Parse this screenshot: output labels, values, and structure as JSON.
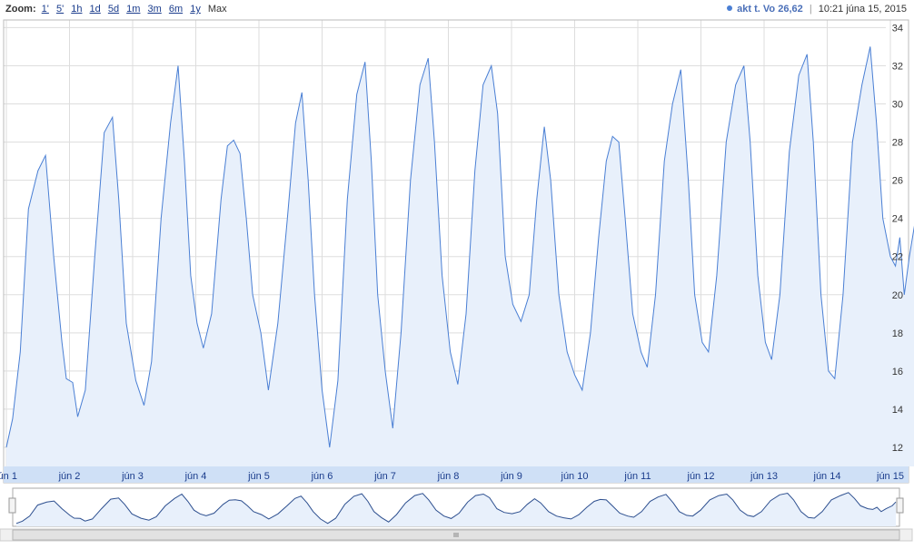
{
  "toolbar": {
    "zoom_label": "Zoom:",
    "zoom_options": [
      "1'",
      "5'",
      "1h",
      "1d",
      "5d",
      "1m",
      "3m",
      "6m",
      "1y",
      "Max"
    ],
    "active_zoom": "Max",
    "series_label": "akt t. Vo",
    "current_value": "26,62",
    "timestamp": "10:21 júna 15, 2015"
  },
  "colors": {
    "line": "#4a7fd4",
    "fill": "#e8f0fb",
    "grid": "#dddddd",
    "axis_band": "#cfe0f6"
  },
  "chart_data": {
    "type": "area",
    "title": "",
    "xlabel": "",
    "ylabel": "",
    "ylim": [
      11,
      34.4
    ],
    "xlim": [
      0,
      14.46
    ],
    "yticks": [
      "12",
      "14",
      "16",
      "18",
      "20",
      "22",
      "24",
      "26",
      "28",
      "30",
      "32",
      "34"
    ],
    "xticks": [
      {
        "x": 0,
        "label": "jún 1"
      },
      {
        "x": 1,
        "label": "jún 2"
      },
      {
        "x": 2,
        "label": "jún 3"
      },
      {
        "x": 3,
        "label": "jún 4"
      },
      {
        "x": 4,
        "label": "jún 5"
      },
      {
        "x": 5,
        "label": "jún 6"
      },
      {
        "x": 6,
        "label": "jún 7"
      },
      {
        "x": 7,
        "label": "jún 8"
      },
      {
        "x": 8,
        "label": "jún 9"
      },
      {
        "x": 9,
        "label": "jún 10"
      },
      {
        "x": 10,
        "label": "jún 11"
      },
      {
        "x": 11,
        "label": "jún 12"
      },
      {
        "x": 12,
        "label": "jún 13"
      },
      {
        "x": 13,
        "label": "jún 14"
      },
      {
        "x": 14,
        "label": "jún 15"
      }
    ],
    "series": [
      {
        "points": [
          [
            0.0,
            12.0
          ],
          [
            0.1,
            13.5
          ],
          [
            0.22,
            17.0
          ],
          [
            0.35,
            24.5
          ],
          [
            0.5,
            26.5
          ],
          [
            0.62,
            27.3
          ],
          [
            0.75,
            22.0
          ],
          [
            0.88,
            17.5
          ],
          [
            0.95,
            15.6
          ],
          [
            1.05,
            15.4
          ],
          [
            1.13,
            13.6
          ],
          [
            1.25,
            15.0
          ],
          [
            1.4,
            22.0
          ],
          [
            1.55,
            28.5
          ],
          [
            1.68,
            29.3
          ],
          [
            1.78,
            25.0
          ],
          [
            1.9,
            18.5
          ],
          [
            2.05,
            15.5
          ],
          [
            2.18,
            14.2
          ],
          [
            2.3,
            16.5
          ],
          [
            2.45,
            24.0
          ],
          [
            2.6,
            29.0
          ],
          [
            2.72,
            32.0
          ],
          [
            2.82,
            27.0
          ],
          [
            2.92,
            21.0
          ],
          [
            3.02,
            18.5
          ],
          [
            3.12,
            17.2
          ],
          [
            3.25,
            19.0
          ],
          [
            3.4,
            25.0
          ],
          [
            3.5,
            27.8
          ],
          [
            3.6,
            28.1
          ],
          [
            3.7,
            27.4
          ],
          [
            3.8,
            24.0
          ],
          [
            3.9,
            20.0
          ],
          [
            4.03,
            18.0
          ],
          [
            4.15,
            15.0
          ],
          [
            4.3,
            18.5
          ],
          [
            4.45,
            24.0
          ],
          [
            4.58,
            29.0
          ],
          [
            4.68,
            30.6
          ],
          [
            4.78,
            26.0
          ],
          [
            4.88,
            20.0
          ],
          [
            5.0,
            15.0
          ],
          [
            5.12,
            12.0
          ],
          [
            5.25,
            15.5
          ],
          [
            5.4,
            25.0
          ],
          [
            5.55,
            30.5
          ],
          [
            5.68,
            32.2
          ],
          [
            5.78,
            27.0
          ],
          [
            5.88,
            20.0
          ],
          [
            6.0,
            16.0
          ],
          [
            6.12,
            13.0
          ],
          [
            6.25,
            18.0
          ],
          [
            6.4,
            26.0
          ],
          [
            6.55,
            31.0
          ],
          [
            6.68,
            32.4
          ],
          [
            6.78,
            28.0
          ],
          [
            6.9,
            21.0
          ],
          [
            7.03,
            17.0
          ],
          [
            7.15,
            15.3
          ],
          [
            7.28,
            19.0
          ],
          [
            7.42,
            26.5
          ],
          [
            7.55,
            31.0
          ],
          [
            7.68,
            32.0
          ],
          [
            7.78,
            29.5
          ],
          [
            7.9,
            22.0
          ],
          [
            8.02,
            19.5
          ],
          [
            8.15,
            18.6
          ],
          [
            8.28,
            20.0
          ],
          [
            8.4,
            25.0
          ],
          [
            8.52,
            28.8
          ],
          [
            8.62,
            26.0
          ],
          [
            8.75,
            20.0
          ],
          [
            8.88,
            17.0
          ],
          [
            9.0,
            15.8
          ],
          [
            9.12,
            15.0
          ],
          [
            9.25,
            18.0
          ],
          [
            9.38,
            23.0
          ],
          [
            9.5,
            27.0
          ],
          [
            9.6,
            28.3
          ],
          [
            9.7,
            28.0
          ],
          [
            9.8,
            24.0
          ],
          [
            9.92,
            19.0
          ],
          [
            10.05,
            17.0
          ],
          [
            10.15,
            16.2
          ],
          [
            10.28,
            20.0
          ],
          [
            10.42,
            27.0
          ],
          [
            10.55,
            30.0
          ],
          [
            10.68,
            31.8
          ],
          [
            10.8,
            26.0
          ],
          [
            10.9,
            20.0
          ],
          [
            11.02,
            17.5
          ],
          [
            11.12,
            17.0
          ],
          [
            11.25,
            21.0
          ],
          [
            11.4,
            28.0
          ],
          [
            11.55,
            31.0
          ],
          [
            11.68,
            32.0
          ],
          [
            11.78,
            28.0
          ],
          [
            11.9,
            21.0
          ],
          [
            12.02,
            17.5
          ],
          [
            12.12,
            16.6
          ],
          [
            12.25,
            20.0
          ],
          [
            12.4,
            27.5
          ],
          [
            12.55,
            31.5
          ],
          [
            12.68,
            32.6
          ],
          [
            12.78,
            28.0
          ],
          [
            12.9,
            20.0
          ],
          [
            13.02,
            16.0
          ],
          [
            13.12,
            15.6
          ],
          [
            13.25,
            20.0
          ],
          [
            13.4,
            28.0
          ],
          [
            13.55,
            31.0
          ],
          [
            13.68,
            33.0
          ],
          [
            13.78,
            29.0
          ],
          [
            13.88,
            24.0
          ],
          [
            14.0,
            22.0
          ],
          [
            14.08,
            21.5
          ],
          [
            14.15,
            23.0
          ],
          [
            14.22,
            20.0
          ],
          [
            14.3,
            22.0
          ],
          [
            14.4,
            24.0
          ],
          [
            14.46,
            26.6
          ]
        ]
      }
    ]
  }
}
